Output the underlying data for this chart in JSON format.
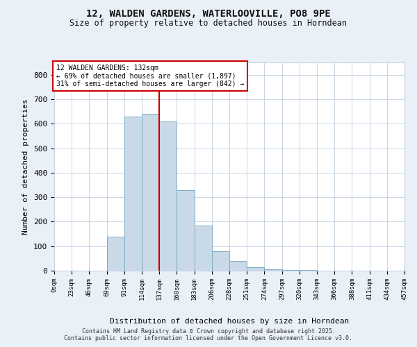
{
  "title_line1": "12, WALDEN GARDENS, WATERLOOVILLE, PO8 9PE",
  "title_line2": "Size of property relative to detached houses in Horndean",
  "xlabel": "Distribution of detached houses by size in Horndean",
  "ylabel": "Number of detached properties",
  "bar_values": [
    0,
    0,
    0,
    140,
    630,
    640,
    610,
    330,
    185,
    80,
    40,
    15,
    5,
    3,
    2,
    1,
    1,
    0,
    0,
    0
  ],
  "bin_labels": [
    "0sqm",
    "23sqm",
    "46sqm",
    "69sqm",
    "91sqm",
    "114sqm",
    "137sqm",
    "160sqm",
    "183sqm",
    "206sqm",
    "228sqm",
    "251sqm",
    "274sqm",
    "297sqm",
    "320sqm",
    "343sqm",
    "366sqm",
    "388sqm",
    "411sqm",
    "434sqm",
    "457sqm"
  ],
  "bar_color": "#c9d9e8",
  "bar_edge_color": "#7eadc6",
  "annotation_text": "12 WALDEN GARDENS: 132sqm\n← 69% of detached houses are smaller (1,897)\n31% of semi-detached houses are larger (842) →",
  "annotation_box_color": "#ffffff",
  "annotation_box_edge_color": "#cc0000",
  "red_line_color": "#cc0000",
  "red_line_x": 5.5,
  "ylim": [
    0,
    850
  ],
  "yticks": [
    0,
    100,
    200,
    300,
    400,
    500,
    600,
    700,
    800
  ],
  "footer_text": "Contains HM Land Registry data © Crown copyright and database right 2025.\nContains public sector information licensed under the Open Government Licence v3.0.",
  "background_color": "#eaf0f8",
  "plot_background_color": "#ffffff",
  "grid_color": "#c8d4e4"
}
